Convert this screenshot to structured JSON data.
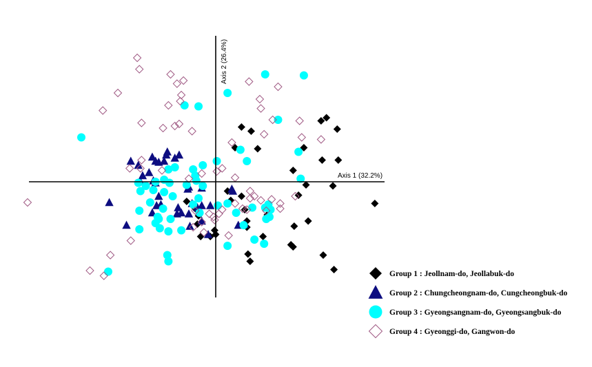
{
  "chart_data": {
    "type": "scatter",
    "xlabel": "Axis 1 (32.2%)",
    "ylabel": "Axis 2 (26.4%)",
    "xlim": [
      -1.7,
      1.54
    ],
    "ylim": [
      -1.08,
      1.36
    ],
    "grid": false,
    "legend_position": "bottom-right",
    "series": [
      {
        "name": "Group 1 : Jeollnam-do, Jeollabuk-do",
        "marker": "diamond",
        "color": "#000000",
        "points": [
          [
            0.24,
            0.53
          ],
          [
            0.33,
            0.49
          ],
          [
            0.18,
            0.33
          ],
          [
            0.39,
            0.32
          ],
          [
            0.98,
            0.59
          ],
          [
            1.03,
            0.62
          ],
          [
            1.13,
            0.51
          ],
          [
            0.82,
            0.33
          ],
          [
            0.99,
            0.21
          ],
          [
            1.14,
            0.21
          ],
          [
            0.72,
            0.11
          ],
          [
            0.84,
            -0.03
          ],
          [
            1.09,
            -0.04
          ],
          [
            1.48,
            -0.21
          ],
          [
            0.77,
            -0.13
          ],
          [
            0.11,
            -0.09
          ],
          [
            0.24,
            -0.14
          ],
          [
            -0.27,
            -0.19
          ],
          [
            -0.19,
            -0.26
          ],
          [
            -0.16,
            -0.33
          ],
          [
            -0.17,
            -0.41
          ],
          [
            0.14,
            -0.18
          ],
          [
            0.27,
            -0.27
          ],
          [
            0.48,
            -0.32
          ],
          [
            0.29,
            -0.38
          ],
          [
            0.86,
            -0.38
          ],
          [
            0.73,
            -0.43
          ],
          [
            0.29,
            -0.44
          ],
          [
            -0.01,
            -0.47
          ],
          [
            0.44,
            -0.53
          ],
          [
            0.7,
            -0.61
          ],
          [
            0.72,
            -0.63
          ],
          [
            -0.05,
            -0.53
          ],
          [
            0.0,
            -0.51
          ],
          [
            -0.14,
            -0.53
          ],
          [
            0.3,
            -0.7
          ],
          [
            0.32,
            -0.77
          ],
          [
            1.0,
            -0.71
          ],
          [
            1.1,
            -0.85
          ]
        ]
      },
      {
        "name": "Group 2 : Chungcheongnam-do, Cungcheongbuk-do",
        "marker": "triangle",
        "color": "#0d0d80",
        "points": [
          [
            -0.45,
            0.29
          ],
          [
            -0.46,
            0.26
          ],
          [
            -0.56,
            0.2
          ],
          [
            -0.53,
            0.19
          ],
          [
            -0.48,
            0.2
          ],
          [
            -0.79,
            0.2
          ],
          [
            -0.72,
            0.16
          ],
          [
            -0.59,
            0.24
          ],
          [
            -0.34,
            0.26
          ],
          [
            -0.38,
            0.23
          ],
          [
            -0.62,
            0.09
          ],
          [
            -0.68,
            0.06
          ],
          [
            -0.7,
            0.0
          ],
          [
            -0.58,
            0.01
          ],
          [
            -0.56,
            -0.01
          ],
          [
            -0.25,
            -0.05
          ],
          [
            -0.13,
            -0.06
          ],
          [
            -0.26,
            -0.07
          ],
          [
            0.15,
            -0.07
          ],
          [
            0.16,
            -0.09
          ],
          [
            -0.53,
            -0.14
          ],
          [
            -0.22,
            -0.21
          ],
          [
            -0.13,
            -0.23
          ],
          [
            -0.05,
            -0.23
          ],
          [
            -0.17,
            -0.25
          ],
          [
            -0.99,
            -0.2
          ],
          [
            -0.51,
            -0.22
          ],
          [
            -0.55,
            -0.23
          ],
          [
            -0.35,
            -0.25
          ],
          [
            -0.32,
            -0.3
          ],
          [
            -0.36,
            -0.31
          ],
          [
            -0.25,
            -0.31
          ],
          [
            -0.59,
            -0.3
          ],
          [
            -0.13,
            -0.38
          ],
          [
            -0.83,
            -0.42
          ],
          [
            -0.24,
            -0.43
          ],
          [
            0.21,
            -0.42
          ],
          [
            0.27,
            -0.41
          ],
          [
            -0.07,
            -0.51
          ]
        ]
      },
      {
        "name": "Group 3 : Gyeongsangnam-do, Gyeongsangbuk-do",
        "marker": "circle",
        "color": "#00ffff",
        "points": [
          [
            0.46,
            1.04
          ],
          [
            0.82,
            1.03
          ],
          [
            0.11,
            0.86
          ],
          [
            -0.16,
            0.73
          ],
          [
            -0.29,
            0.74
          ],
          [
            0.58,
            0.6
          ],
          [
            -1.25,
            0.43
          ],
          [
            0.23,
            0.31
          ],
          [
            0.77,
            0.29
          ],
          [
            0.29,
            0.2
          ],
          [
            -0.12,
            0.16
          ],
          [
            -0.38,
            0.14
          ],
          [
            -0.44,
            0.12
          ],
          [
            -0.21,
            0.12
          ],
          [
            -0.19,
            0.06
          ],
          [
            0.01,
            0.2
          ],
          [
            0.79,
            0.03
          ],
          [
            -0.48,
            0.02
          ],
          [
            -0.56,
            0.0
          ],
          [
            -0.43,
            -0.01
          ],
          [
            -0.18,
            0.01
          ],
          [
            -0.27,
            -0.03
          ],
          [
            -0.12,
            -0.04
          ],
          [
            -0.48,
            -0.1
          ],
          [
            -0.58,
            -0.08
          ],
          [
            -0.65,
            -0.04
          ],
          [
            -0.7,
            -0.09
          ],
          [
            -0.72,
            -0.01
          ],
          [
            -0.4,
            -0.14
          ],
          [
            -0.16,
            -0.16
          ],
          [
            -0.21,
            -0.22
          ],
          [
            -0.15,
            -0.3
          ],
          [
            0.02,
            -0.23
          ],
          [
            0.11,
            -0.21
          ],
          [
            0.34,
            -0.25
          ],
          [
            0.46,
            -0.25
          ],
          [
            0.49,
            -0.22
          ],
          [
            0.51,
            -0.27
          ],
          [
            0.5,
            -0.34
          ],
          [
            0.47,
            -0.36
          ],
          [
            -0.71,
            -0.28
          ],
          [
            -0.61,
            -0.2
          ],
          [
            -0.49,
            -0.26
          ],
          [
            -0.54,
            -0.34
          ],
          [
            -0.53,
            -0.36
          ],
          [
            -0.42,
            -0.36
          ],
          [
            -0.56,
            -0.4
          ],
          [
            -0.52,
            -0.45
          ],
          [
            -0.44,
            -0.48
          ],
          [
            -0.32,
            -0.47
          ],
          [
            -0.71,
            -0.46
          ],
          [
            0.19,
            -0.3
          ],
          [
            0.26,
            -0.42
          ],
          [
            0.36,
            -0.56
          ],
          [
            0.45,
            -0.6
          ],
          [
            0.11,
            -0.62
          ],
          [
            -0.45,
            -0.71
          ],
          [
            -0.44,
            -0.77
          ],
          [
            -1.0,
            -0.87
          ]
        ]
      },
      {
        "name": "Group 4 : Gyeonggi-do, Gangwon-do",
        "marker": "diamond-open",
        "color": "#a05a84",
        "points": [
          [
            -0.73,
            1.2
          ],
          [
            -0.71,
            1.09
          ],
          [
            -0.42,
            1.04
          ],
          [
            -0.3,
            0.98
          ],
          [
            -0.36,
            0.95
          ],
          [
            0.31,
            0.97
          ],
          [
            0.58,
            0.92
          ],
          [
            0.41,
            0.8
          ],
          [
            -0.44,
            0.74
          ],
          [
            -0.91,
            0.86
          ],
          [
            -0.32,
            0.84
          ],
          [
            -0.33,
            0.78
          ],
          [
            -1.05,
            0.69
          ],
          [
            0.42,
            0.71
          ],
          [
            0.53,
            0.6
          ],
          [
            0.78,
            0.59
          ],
          [
            -0.69,
            0.57
          ],
          [
            -0.49,
            0.52
          ],
          [
            -0.38,
            0.54
          ],
          [
            -0.34,
            0.56
          ],
          [
            -0.22,
            0.49
          ],
          [
            0.45,
            0.46
          ],
          [
            0.8,
            0.43
          ],
          [
            0.15,
            0.38
          ],
          [
            0.98,
            0.41
          ],
          [
            -0.69,
            0.21
          ],
          [
            -0.8,
            0.13
          ],
          [
            -0.7,
            0.13
          ],
          [
            -0.5,
            0.11
          ],
          [
            -0.13,
            0.08
          ],
          [
            -0.25,
            0.03
          ],
          [
            0.01,
            0.1
          ],
          [
            0.06,
            0.13
          ],
          [
            0.18,
            0.04
          ],
          [
            0.32,
            -0.09
          ],
          [
            0.42,
            -0.18
          ],
          [
            0.36,
            -0.14
          ],
          [
            0.52,
            -0.17
          ],
          [
            0.6,
            -0.21
          ],
          [
            0.6,
            -0.26
          ],
          [
            0.74,
            -0.14
          ],
          [
            0.25,
            -0.26
          ],
          [
            0.29,
            -0.27
          ],
          [
            0.47,
            -0.28
          ],
          [
            -0.06,
            -0.31
          ],
          [
            0.03,
            -0.31
          ],
          [
            0.06,
            -0.27
          ],
          [
            -0.01,
            -0.37
          ],
          [
            -0.13,
            -0.39
          ],
          [
            -0.21,
            -0.44
          ],
          [
            -0.11,
            -0.49
          ],
          [
            0.12,
            -0.52
          ],
          [
            -0.79,
            -0.57
          ],
          [
            -0.98,
            -0.71
          ],
          [
            -1.75,
            -0.2
          ],
          [
            -1.17,
            -0.86
          ],
          [
            -1.04,
            -0.91
          ],
          [
            0.32,
            -0.16
          ],
          [
            0.18,
            -0.21
          ],
          [
            -0.19,
            -0.28
          ],
          [
            -0.02,
            -0.34
          ]
        ]
      }
    ]
  }
}
